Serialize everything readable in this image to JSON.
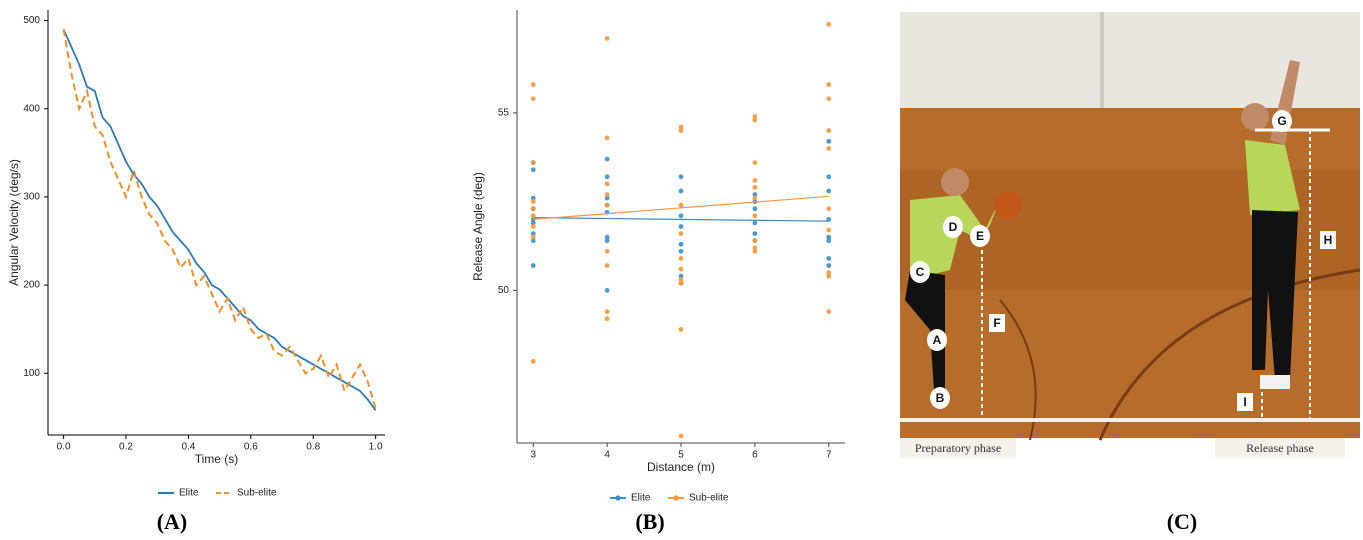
{
  "chart_data": [
    {
      "type": "line",
      "x_label": "Time (s)",
      "y_label": "Angular Velocity (deg/s)",
      "x": [
        0,
        0.025,
        0.05,
        0.075,
        0.1,
        0.125,
        0.15,
        0.175,
        0.2,
        0.225,
        0.25,
        0.275,
        0.3,
        0.325,
        0.35,
        0.375,
        0.4,
        0.425,
        0.45,
        0.475,
        0.5,
        0.525,
        0.55,
        0.575,
        0.6,
        0.625,
        0.65,
        0.675,
        0.7,
        0.725,
        0.75,
        0.775,
        0.8,
        0.825,
        0.85,
        0.875,
        0.9,
        0.925,
        0.95,
        0.975,
        1.0
      ],
      "series": [
        {
          "name": "Elite",
          "color": "#2c7bb6",
          "linestyle": "solid",
          "values": [
            490,
            470,
            450,
            425,
            420,
            390,
            380,
            360,
            340,
            325,
            315,
            300,
            290,
            275,
            260,
            250,
            240,
            225,
            215,
            200,
            195,
            185,
            175,
            165,
            160,
            150,
            145,
            140,
            130,
            125,
            120,
            115,
            110,
            105,
            100,
            95,
            90,
            85,
            80,
            70,
            58
          ]
        },
        {
          "name": "Sub-elite",
          "color": "#f28e2b",
          "linestyle": "dashed",
          "values": [
            490,
            440,
            400,
            420,
            380,
            370,
            340,
            320,
            300,
            330,
            300,
            280,
            270,
            250,
            240,
            220,
            230,
            200,
            210,
            190,
            170,
            185,
            160,
            175,
            150,
            140,
            145,
            125,
            120,
            130,
            115,
            100,
            105,
            120,
            95,
            110,
            80,
            95,
            110,
            90,
            60
          ]
        }
      ],
      "xlim": [
        -0.05,
        1.03
      ],
      "xticks": [
        {
          "value": 0,
          "label": "0.0"
        },
        0.2,
        0.4,
        0.6,
        0.8,
        {
          "value": 1,
          "label": "1.0"
        }
      ],
      "ylim": [
        30,
        512
      ],
      "yticks": [
        100,
        200,
        300,
        400,
        500
      ],
      "legend": "bottom"
    },
    {
      "type": "scatter",
      "x_label": "Distance (m)",
      "y_label": "Release Angle (deg)",
      "series": [
        {
          "name": "Elite",
          "color": "#3a8fc7",
          "x": [
            3,
            3,
            3,
            3,
            3,
            3,
            3,
            3,
            3,
            4,
            4,
            4,
            4,
            4,
            4,
            4,
            4,
            5,
            5,
            5,
            5,
            5,
            5,
            5,
            5,
            6,
            6,
            6,
            6,
            6,
            6,
            7,
            7,
            7,
            7,
            7,
            7,
            7,
            7
          ],
          "values": [
            53.6,
            53.4,
            52.6,
            52.3,
            52.0,
            51.9,
            51.6,
            51.4,
            50.7,
            53.7,
            53.2,
            52.6,
            52.4,
            52.2,
            51.5,
            51.4,
            50.0,
            53.2,
            52.8,
            52.1,
            51.8,
            51.3,
            51.1,
            50.4,
            50.2,
            52.7,
            52.5,
            52.3,
            51.9,
            51.6,
            51.4,
            54.2,
            53.2,
            52.8,
            52.0,
            51.5,
            51.4,
            50.9,
            50.7
          ],
          "trend": {
            "x": [
              3,
              7
            ],
            "values": [
              52.05,
              51.95
            ]
          }
        },
        {
          "name": "Sub-elite",
          "color": "#f7963a",
          "x": [
            3,
            3,
            3,
            3,
            3,
            3,
            3,
            3,
            3,
            4,
            4,
            4,
            4,
            4,
            4,
            4,
            4,
            4,
            5,
            5,
            5,
            5,
            5,
            5,
            5,
            5,
            5,
            5,
            6,
            6,
            6,
            6,
            6,
            6,
            6,
            6,
            6,
            6,
            7,
            7,
            7,
            7,
            7,
            7,
            7,
            7,
            7,
            7
          ],
          "values": [
            55.8,
            55.4,
            53.6,
            52.5,
            52.3,
            52.1,
            51.8,
            51.5,
            48.0,
            57.1,
            54.3,
            53.0,
            52.7,
            52.4,
            51.1,
            50.7,
            49.4,
            49.2,
            54.6,
            54.5,
            52.4,
            51.6,
            50.9,
            50.6,
            50.3,
            50.2,
            48.9,
            45.9,
            54.9,
            54.8,
            53.6,
            53.1,
            52.9,
            52.6,
            52.1,
            51.4,
            51.2,
            51.1,
            57.5,
            55.8,
            55.4,
            54.5,
            54.0,
            52.3,
            51.7,
            50.5,
            50.4,
            49.4
          ],
          "trend": {
            "x": [
              3,
              7
            ],
            "values": [
              52.0,
              52.65
            ]
          }
        }
      ],
      "xlim": [
        2.78,
        7.22
      ],
      "xticks": [
        3,
        4,
        5,
        6,
        7
      ],
      "ylim": [
        45.7,
        57.9
      ],
      "yticks": [
        50,
        55
      ],
      "legend": "bottom"
    }
  ],
  "panel_labels": [
    "(A)",
    "(B)",
    "(C)"
  ],
  "photo": {
    "labels": [
      "A",
      "B",
      "C",
      "D",
      "E",
      "F",
      "G",
      "H",
      "I"
    ],
    "captions": [
      "Preparatory phase",
      "Release phase"
    ]
  }
}
